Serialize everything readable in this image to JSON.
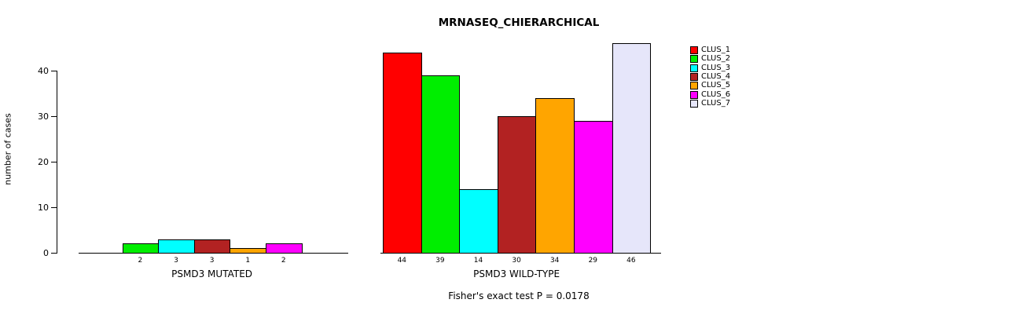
{
  "chart_data": {
    "type": "bar",
    "title": "MRNASEQ_CHIERARCHICAL",
    "ylabel": "number of cases",
    "annotation": "Fisher's exact test P = 0.0178",
    "yticks": [
      0,
      10,
      20,
      30,
      40
    ],
    "ylim": [
      0,
      46
    ],
    "grid": false,
    "legend_position": "right",
    "legend": [
      {
        "label": "CLUS_1",
        "color": "#FF0000"
      },
      {
        "label": "CLUS_2",
        "color": "#00EE00"
      },
      {
        "label": "CLUS_3",
        "color": "#00FFFF"
      },
      {
        "label": "CLUS_4",
        "color": "#B22222"
      },
      {
        "label": "CLUS_5",
        "color": "#FFA500"
      },
      {
        "label": "CLUS_6",
        "color": "#FF00FF"
      },
      {
        "label": "CLUS_7",
        "color": "#E6E6FA"
      }
    ],
    "groups": [
      {
        "label": "PSMD3 MUTATED",
        "values": [
          0,
          2,
          3,
          3,
          1,
          2,
          0
        ]
      },
      {
        "label": "PSMD3 WILD-TYPE",
        "values": [
          44,
          39,
          14,
          30,
          34,
          29,
          46
        ]
      }
    ]
  }
}
